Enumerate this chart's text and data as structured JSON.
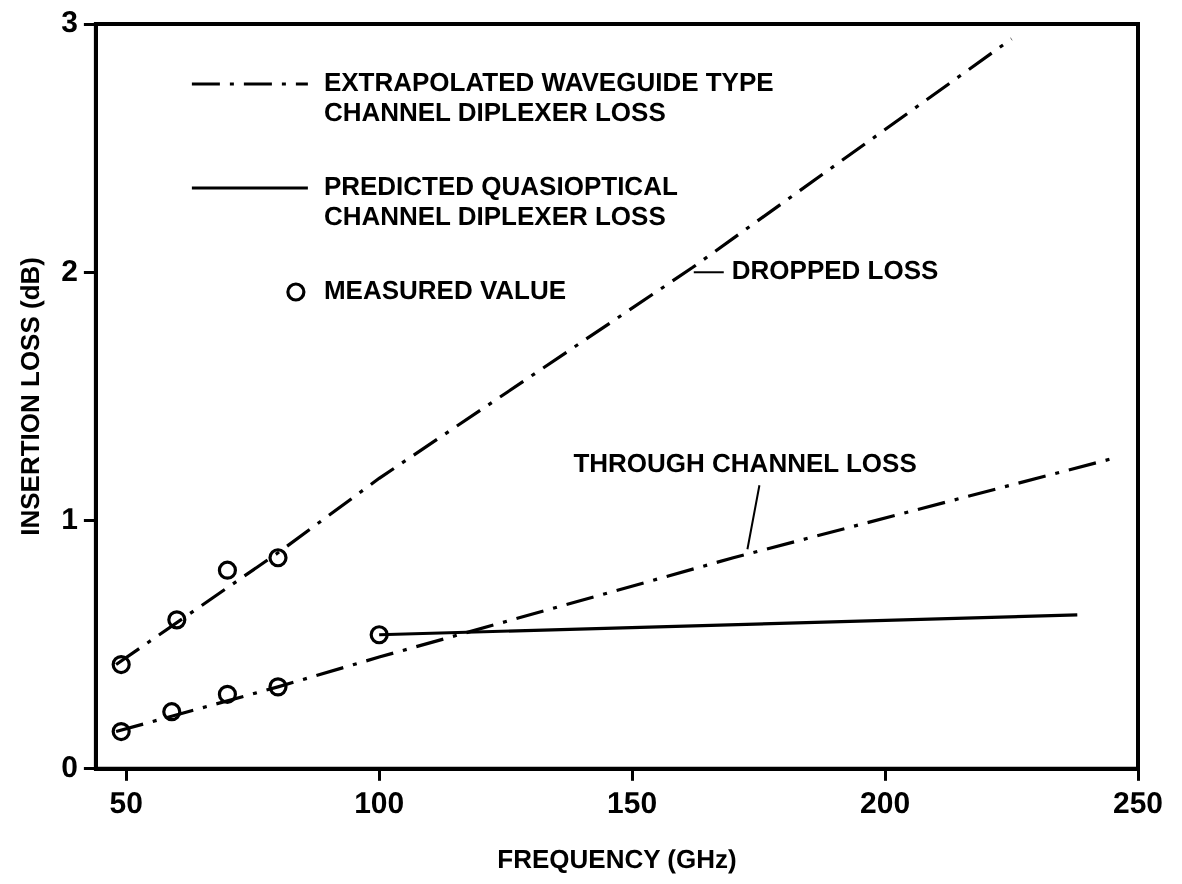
{
  "chart_data": {
    "type": "line",
    "xlabel": "FREQUENCY (GHz)",
    "ylabel": "INSERTION LOSS (dB)",
    "xlim": [
      44,
      250
    ],
    "xticks": [
      50,
      100,
      150,
      200,
      250
    ],
    "ylim": [
      0,
      3
    ],
    "yticks": [
      0,
      1,
      2,
      3
    ],
    "grid": false,
    "legend": "top left",
    "series": [
      {
        "name": "EXTRAPOLATED WAVEGUIDE TYPE CHANNEL DIPLEXER LOSS",
        "line_style": "dashed",
        "color": "#000000",
        "x": [
          48,
          80,
          100,
          162,
          225
        ],
        "values": [
          0.42,
          0.87,
          1.17,
          2.02,
          2.94
        ]
      },
      {
        "line_style": "dashed",
        "color": "#000000",
        "x": [
          48,
          80,
          100,
          170,
          245
        ],
        "values": [
          0.15,
          0.33,
          0.45,
          0.85,
          1.25
        ]
      },
      {
        "name": "PREDICTED QUASIOPTICAL CHANNEL DIPLEXER LOSS",
        "line_style": "solid",
        "color": "#000000",
        "x": [
          100,
          238
        ],
        "values": [
          0.54,
          0.62
        ]
      },
      {
        "name": "MEASURED VALUE",
        "type": "scatter",
        "marker": "circle",
        "color": "#000000",
        "x": [
          49,
          60,
          70,
          80,
          49,
          59,
          70,
          80,
          100
        ],
        "values": [
          0.42,
          0.6,
          0.8,
          0.85,
          0.15,
          0.23,
          0.3,
          0.33,
          0.54
        ]
      }
    ],
    "annotations": [
      {
        "text": "DROPPED LOSS",
        "x": 161,
        "y": 2.0
      },
      {
        "text": "THROUGH CHANNEL LOSS",
        "x": 172,
        "y": 0.86
      }
    ]
  }
}
